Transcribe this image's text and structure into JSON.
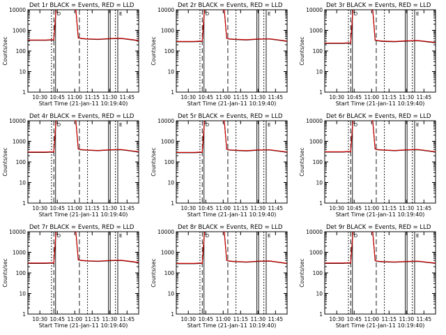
{
  "colors": {
    "events": "#000000",
    "lld": "#cc0000",
    "axes": "#000000",
    "background": "#ffffff"
  },
  "shared": {
    "ylabel": "Counts/sec",
    "xlabel": "Start Time (21-Jan-11 10:19:40)",
    "x_ticks": [
      "10:30",
      "10:45",
      "11:00",
      "11:15",
      "11:30",
      "11:45"
    ],
    "y_ticks": [
      "1",
      "10",
      "100",
      "1000",
      "10000"
    ],
    "marker_labels": [
      "D",
      "E"
    ]
  },
  "chart_data": [
    {
      "type": "line",
      "title": "Det 1r BLACK = Events, RED = LLD",
      "ylog": true,
      "ylim": [
        1,
        10000
      ],
      "xlim": [
        "10:19:40",
        "11:55"
      ],
      "series": [
        {
          "name": "Events",
          "x": [
            "10:19:40",
            "10:35",
            "10:40",
            "10:42",
            "10:44",
            "10:47",
            "10:52",
            "10:58",
            "11:01",
            "11:03",
            "11:05",
            "11:10",
            "11:20",
            "11:30",
            "11:40",
            "11:50",
            "11:55"
          ],
          "values": [
            330,
            330,
            340,
            330,
            12000,
            12000,
            12000,
            11000,
            9500,
            430,
            400,
            380,
            360,
            390,
            400,
            340,
            310
          ]
        },
        {
          "name": "LLD",
          "x": [
            "10:19:40",
            "10:35",
            "10:40",
            "10:42",
            "10:44",
            "10:47",
            "10:52",
            "10:58",
            "11:01",
            "11:03",
            "11:05",
            "11:10",
            "11:20",
            "11:30",
            "11:40",
            "11:50",
            "11:55"
          ],
          "values": [
            340,
            340,
            350,
            340,
            12000,
            12000,
            12000,
            11000,
            9500,
            440,
            410,
            390,
            370,
            400,
            410,
            350,
            320
          ]
        }
      ]
    },
    {
      "type": "line",
      "title": "Det 2r BLACK = Events, RED = LLD",
      "ylog": true,
      "ylim": [
        1,
        10000
      ],
      "xlim": [
        "10:19:40",
        "11:55"
      ],
      "series": [
        {
          "name": "Events",
          "x": [
            "10:19:40",
            "10:35",
            "10:40",
            "10:42",
            "10:44",
            "10:47",
            "10:52",
            "10:58",
            "11:01",
            "11:03",
            "11:05",
            "11:10",
            "11:20",
            "11:30",
            "11:40",
            "11:50",
            "11:55"
          ],
          "values": [
            280,
            280,
            290,
            280,
            12000,
            12000,
            12000,
            11000,
            9500,
            410,
            380,
            360,
            340,
            370,
            380,
            320,
            290
          ]
        },
        {
          "name": "LLD",
          "x": [
            "10:19:40",
            "10:35",
            "10:40",
            "10:42",
            "10:44",
            "10:47",
            "10:52",
            "10:58",
            "11:01",
            "11:03",
            "11:05",
            "11:10",
            "11:20",
            "11:30",
            "11:40",
            "11:50",
            "11:55"
          ],
          "values": [
            290,
            290,
            300,
            290,
            12000,
            12000,
            12000,
            11000,
            9500,
            420,
            390,
            370,
            350,
            380,
            390,
            330,
            300
          ]
        }
      ]
    },
    {
      "type": "line",
      "title": "Det 3r BLACK = Events, RED = LLD",
      "ylog": true,
      "ylim": [
        1,
        10000
      ],
      "xlim": [
        "10:19:40",
        "11:55"
      ],
      "series": [
        {
          "name": "Events",
          "x": [
            "10:19:40",
            "10:35",
            "10:40",
            "10:42",
            "10:44",
            "10:47",
            "10:52",
            "10:58",
            "11:01",
            "11:03",
            "11:05",
            "11:10",
            "11:20",
            "11:30",
            "11:40",
            "11:50",
            "11:55"
          ],
          "values": [
            230,
            230,
            240,
            230,
            12000,
            12000,
            12000,
            11000,
            9500,
            330,
            310,
            290,
            280,
            300,
            310,
            270,
            250
          ]
        },
        {
          "name": "LLD",
          "x": [
            "10:19:40",
            "10:35",
            "10:40",
            "10:42",
            "10:44",
            "10:47",
            "10:52",
            "10:58",
            "11:01",
            "11:03",
            "11:05",
            "11:10",
            "11:20",
            "11:30",
            "11:40",
            "11:50",
            "11:55"
          ],
          "values": [
            240,
            240,
            250,
            240,
            12000,
            12000,
            12000,
            11000,
            9500,
            340,
            320,
            300,
            290,
            310,
            320,
            280,
            260
          ]
        }
      ]
    },
    {
      "type": "line",
      "title": "Det 4r BLACK = Events, RED = LLD",
      "ylog": true,
      "ylim": [
        1,
        10000
      ],
      "xlim": [
        "10:19:40",
        "11:55"
      ],
      "series": [
        {
          "name": "Events",
          "x": [
            "10:19:40",
            "10:35",
            "10:40",
            "10:42",
            "10:44",
            "10:47",
            "10:52",
            "10:58",
            "11:01",
            "11:03",
            "11:05",
            "11:10",
            "11:20",
            "11:30",
            "11:40",
            "11:50",
            "11:55"
          ],
          "values": [
            290,
            290,
            300,
            290,
            12000,
            12000,
            12000,
            11000,
            9500,
            420,
            390,
            370,
            350,
            380,
            390,
            330,
            300
          ]
        },
        {
          "name": "LLD",
          "x": [
            "10:19:40",
            "10:35",
            "10:40",
            "10:42",
            "10:44",
            "10:47",
            "10:52",
            "10:58",
            "11:01",
            "11:03",
            "11:05",
            "11:10",
            "11:20",
            "11:30",
            "11:40",
            "11:50",
            "11:55"
          ],
          "values": [
            300,
            300,
            310,
            300,
            12000,
            12000,
            12000,
            11000,
            9500,
            430,
            400,
            380,
            360,
            390,
            400,
            340,
            310
          ]
        }
      ]
    },
    {
      "type": "line",
      "title": "Det 5r BLACK = Events, RED = LLD",
      "ylog": true,
      "ylim": [
        1,
        10000
      ],
      "xlim": [
        "10:19:40",
        "11:55"
      ],
      "series": [
        {
          "name": "Events",
          "x": [
            "10:19:40",
            "10:35",
            "10:40",
            "10:42",
            "10:44",
            "10:47",
            "10:52",
            "10:58",
            "11:01",
            "11:03",
            "11:05",
            "11:10",
            "11:20",
            "11:30",
            "11:40",
            "11:50",
            "11:55"
          ],
          "values": [
            280,
            280,
            290,
            280,
            12000,
            12000,
            12000,
            11000,
            9500,
            410,
            380,
            360,
            340,
            370,
            380,
            320,
            290
          ]
        },
        {
          "name": "LLD",
          "x": [
            "10:19:40",
            "10:35",
            "10:40",
            "10:42",
            "10:44",
            "10:47",
            "10:52",
            "10:58",
            "11:01",
            "11:03",
            "11:05",
            "11:10",
            "11:20",
            "11:30",
            "11:40",
            "11:50",
            "11:55"
          ],
          "values": [
            290,
            290,
            300,
            290,
            12000,
            12000,
            12000,
            11000,
            9500,
            420,
            390,
            370,
            350,
            380,
            390,
            330,
            300
          ]
        }
      ]
    },
    {
      "type": "line",
      "title": "Det 6r BLACK = Events, RED = LLD",
      "ylog": true,
      "ylim": [
        1,
        10000
      ],
      "xlim": [
        "10:19:40",
        "11:55"
      ],
      "series": [
        {
          "name": "Events",
          "x": [
            "10:19:40",
            "10:35",
            "10:40",
            "10:42",
            "10:44",
            "10:47",
            "10:52",
            "10:58",
            "11:01",
            "11:03",
            "11:05",
            "11:10",
            "11:20",
            "11:30",
            "11:40",
            "11:50",
            "11:55"
          ],
          "values": [
            300,
            300,
            310,
            300,
            12000,
            12000,
            12000,
            11000,
            9500,
            420,
            390,
            370,
            350,
            380,
            390,
            330,
            300
          ]
        },
        {
          "name": "LLD",
          "x": [
            "10:19:40",
            "10:35",
            "10:40",
            "10:42",
            "10:44",
            "10:47",
            "10:52",
            "10:58",
            "11:01",
            "11:03",
            "11:05",
            "11:10",
            "11:20",
            "11:30",
            "11:40",
            "11:50",
            "11:55"
          ],
          "values": [
            310,
            310,
            320,
            310,
            12000,
            12000,
            12000,
            11000,
            9500,
            430,
            400,
            380,
            360,
            390,
            400,
            340,
            310
          ]
        }
      ]
    },
    {
      "type": "line",
      "title": "Det 7r BLACK = Events, RED = LLD",
      "ylog": true,
      "ylim": [
        1,
        10000
      ],
      "xlim": [
        "10:19:40",
        "11:55"
      ],
      "series": [
        {
          "name": "Events",
          "x": [
            "10:19:40",
            "10:35",
            "10:40",
            "10:42",
            "10:44",
            "10:47",
            "10:52",
            "10:58",
            "11:01",
            "11:03",
            "11:05",
            "11:10",
            "11:20",
            "11:30",
            "11:40",
            "11:50",
            "11:55"
          ],
          "values": [
            290,
            290,
            300,
            290,
            12000,
            12000,
            12000,
            11000,
            9500,
            430,
            400,
            380,
            360,
            390,
            400,
            340,
            310
          ]
        },
        {
          "name": "LLD",
          "x": [
            "10:19:40",
            "10:35",
            "10:40",
            "10:42",
            "10:44",
            "10:47",
            "10:52",
            "10:58",
            "11:01",
            "11:03",
            "11:05",
            "11:10",
            "11:20",
            "11:30",
            "11:40",
            "11:50",
            "11:55"
          ],
          "values": [
            300,
            300,
            310,
            300,
            12000,
            12000,
            12000,
            11000,
            9500,
            440,
            410,
            390,
            370,
            400,
            410,
            350,
            320
          ]
        }
      ]
    },
    {
      "type": "line",
      "title": "Det 8r BLACK = Events, RED = LLD",
      "ylog": true,
      "ylim": [
        1,
        10000
      ],
      "xlim": [
        "10:19:40",
        "11:55"
      ],
      "series": [
        {
          "name": "Events",
          "x": [
            "10:19:40",
            "10:35",
            "10:40",
            "10:42",
            "10:44",
            "10:47",
            "10:52",
            "10:58",
            "11:01",
            "11:03",
            "11:05",
            "11:10",
            "11:20",
            "11:30",
            "11:40",
            "11:50",
            "11:55"
          ],
          "values": [
            280,
            280,
            290,
            280,
            12000,
            12000,
            12000,
            11000,
            9500,
            400,
            370,
            350,
            330,
            360,
            370,
            310,
            280
          ]
        },
        {
          "name": "LLD",
          "x": [
            "10:19:40",
            "10:35",
            "10:40",
            "10:42",
            "10:44",
            "10:47",
            "10:52",
            "10:58",
            "11:01",
            "11:03",
            "11:05",
            "11:10",
            "11:20",
            "11:30",
            "11:40",
            "11:50",
            "11:55"
          ],
          "values": [
            290,
            290,
            300,
            290,
            12000,
            12000,
            12000,
            11000,
            9500,
            410,
            380,
            360,
            340,
            370,
            380,
            320,
            290
          ]
        }
      ]
    },
    {
      "type": "line",
      "title": "Det 9r BLACK = Events, RED = LLD",
      "ylog": true,
      "ylim": [
        1,
        10000
      ],
      "xlim": [
        "10:19:40",
        "11:55"
      ],
      "series": [
        {
          "name": "Events",
          "x": [
            "10:19:40",
            "10:35",
            "10:40",
            "10:42",
            "10:44",
            "10:47",
            "10:52",
            "10:58",
            "11:01",
            "11:03",
            "11:05",
            "11:10",
            "11:20",
            "11:30",
            "11:40",
            "11:50",
            "11:55"
          ],
          "values": [
            290,
            290,
            300,
            290,
            12000,
            12000,
            12000,
            11000,
            9500,
            390,
            360,
            340,
            330,
            350,
            360,
            310,
            290
          ]
        },
        {
          "name": "LLD",
          "x": [
            "10:19:40",
            "10:35",
            "10:40",
            "10:42",
            "10:44",
            "10:47",
            "10:52",
            "10:58",
            "11:01",
            "11:03",
            "11:05",
            "11:10",
            "11:20",
            "11:30",
            "11:40",
            "11:50",
            "11:55"
          ],
          "values": [
            300,
            300,
            310,
            300,
            12000,
            12000,
            12000,
            11000,
            9500,
            400,
            370,
            350,
            340,
            360,
            370,
            320,
            300
          ]
        }
      ]
    }
  ]
}
